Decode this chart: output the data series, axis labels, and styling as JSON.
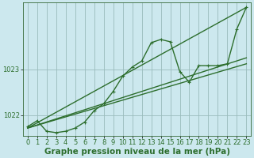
{
  "background_color": "#cce8ee",
  "plot_bg_color": "#cce8ee",
  "grid_color": "#99bbbb",
  "line_color": "#2d6e2d",
  "xlabel": "Graphe pression niveau de la mer (hPa)",
  "xlabel_fontsize": 7.5,
  "tick_fontsize": 6,
  "xlim": [
    -0.5,
    23.5
  ],
  "ylim": [
    1021.55,
    1024.45
  ],
  "yticks": [
    1022,
    1023
  ],
  "xticks": [
    0,
    1,
    2,
    3,
    4,
    5,
    6,
    7,
    8,
    9,
    10,
    11,
    12,
    13,
    14,
    15,
    16,
    17,
    18,
    19,
    20,
    21,
    22,
    23
  ],
  "series": [
    {
      "x": [
        0,
        1,
        2,
        3,
        4,
        5,
        6,
        7,
        8,
        9,
        10,
        11,
        12,
        13,
        14,
        15,
        16,
        17,
        18,
        19,
        20,
        21,
        22,
        23
      ],
      "y": [
        1021.75,
        1021.88,
        1021.65,
        1021.62,
        1021.65,
        1021.72,
        1021.85,
        1022.1,
        1022.25,
        1022.52,
        1022.85,
        1023.05,
        1023.18,
        1023.58,
        1023.65,
        1023.6,
        1022.95,
        1022.72,
        1023.08,
        1023.08,
        1023.08,
        1023.12,
        1023.88,
        1024.35
      ],
      "marker": "+",
      "lw": 1.0
    },
    {
      "x": [
        0,
        23
      ],
      "y": [
        1021.72,
        1023.12
      ],
      "marker": null,
      "lw": 1.0
    },
    {
      "x": [
        0,
        23
      ],
      "y": [
        1021.72,
        1023.25
      ],
      "marker": null,
      "lw": 1.0
    },
    {
      "x": [
        0,
        23
      ],
      "y": [
        1021.72,
        1024.35
      ],
      "marker": null,
      "lw": 1.0
    }
  ]
}
